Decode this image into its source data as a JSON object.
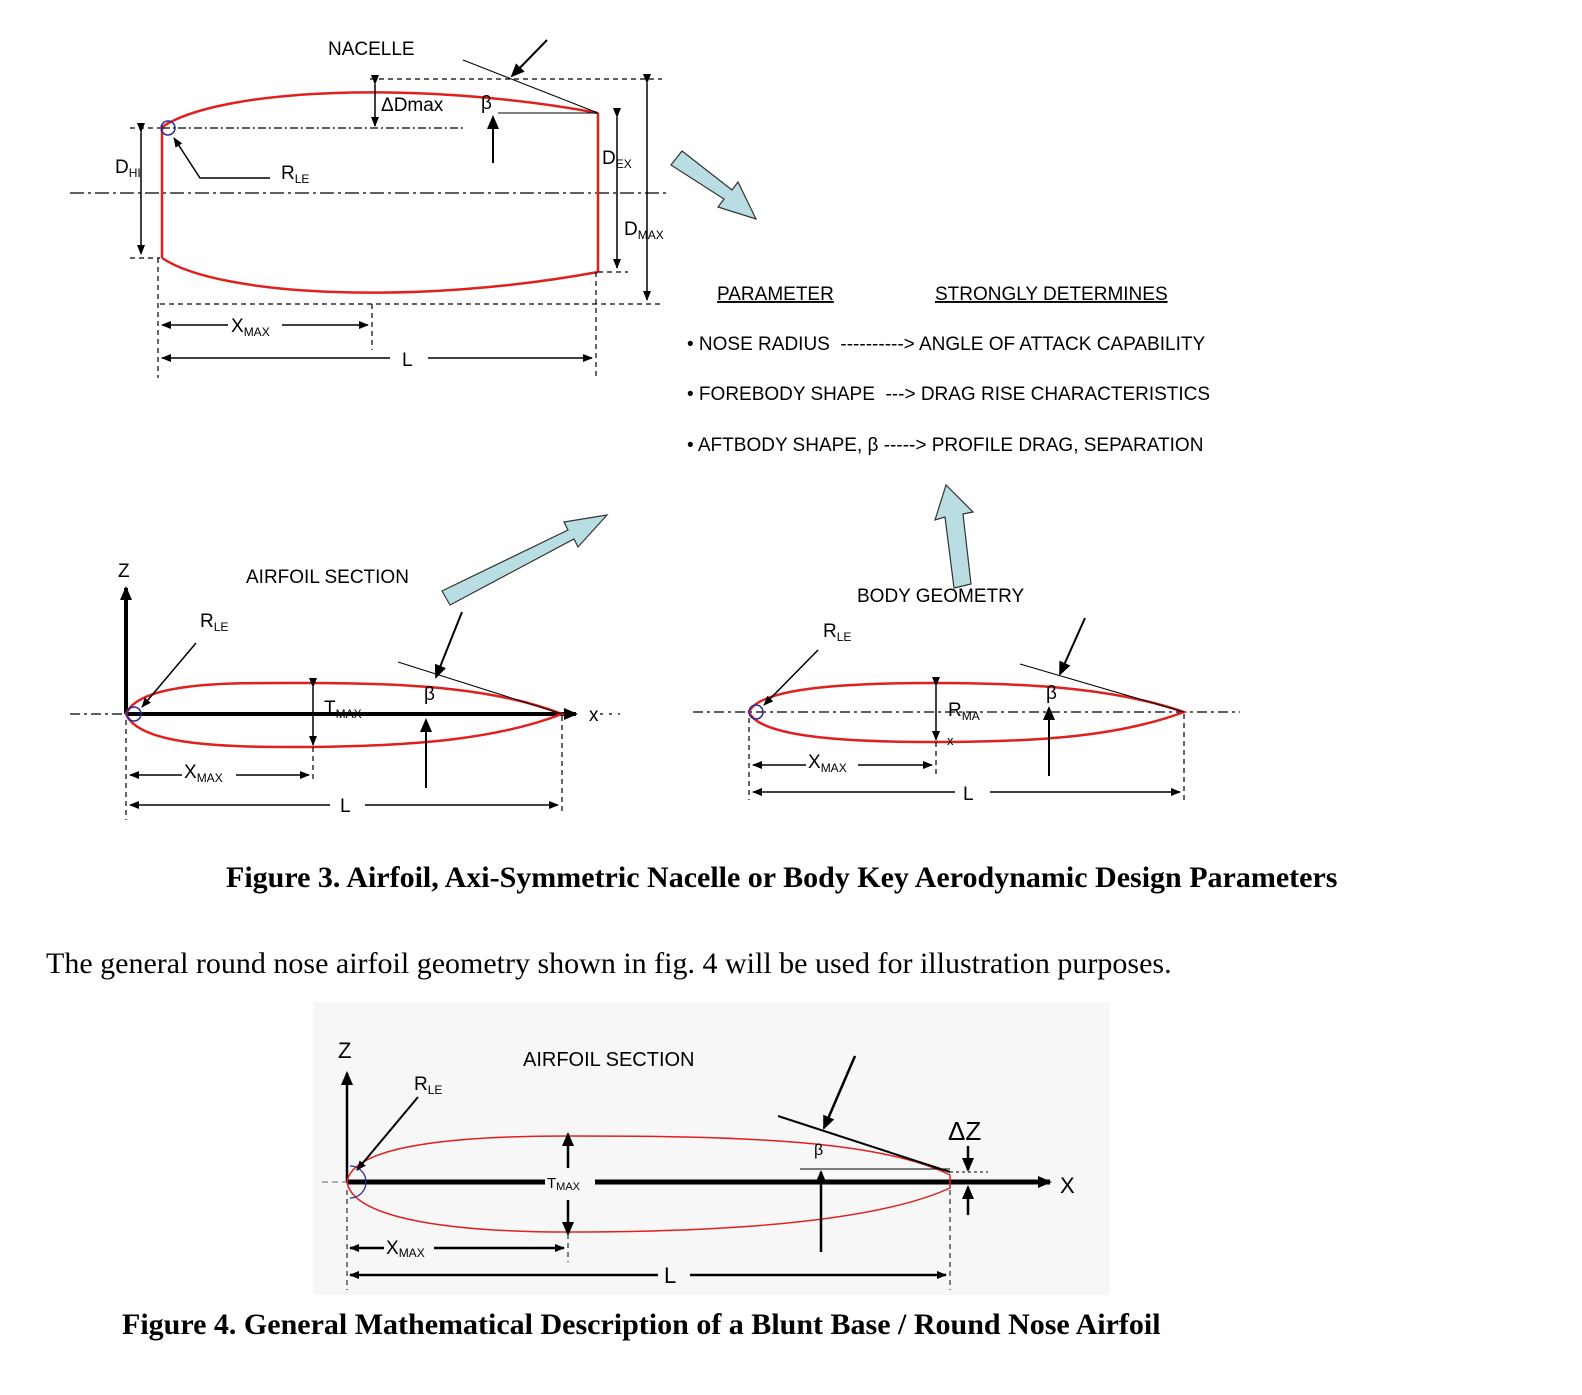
{
  "figure3": {
    "nacelle": {
      "title": "NACELLE",
      "delta_dmax": "ΔDmax",
      "beta": "β",
      "d_hi": "D",
      "d_hi_sub": "HI",
      "r_le": "R",
      "r_le_sub": "LE",
      "d_ex": "D",
      "d_ex_sub": "EX",
      "d_max": "D",
      "d_max_sub": "MAX",
      "x_max": "X",
      "x_max_sub": "MAX",
      "length": "L"
    },
    "table": {
      "header_param": "PARAMETER",
      "header_det": "STRONGLY DETERMINES",
      "rows": [
        "• NOSE RADIUS  ----------> ANGLE OF ATTACK CAPABILITY",
        "• FOREBODY SHAPE  ---> DRAG RISE CHARACTERISTICS",
        "• AFTBODY SHAPE, β -----> PROFILE DRAG, SEPARATION"
      ]
    },
    "airfoil": {
      "title": "AIRFOIL SECTION",
      "z_axis": "Z",
      "x_axis": "x",
      "r_le": "R",
      "r_le_sub": "LE",
      "t_max": "T",
      "t_max_sub": "MAX",
      "beta": "β",
      "x_max": "X",
      "x_max_sub": "MAX",
      "length": "L"
    },
    "body": {
      "title": "BODY GEOMETRY",
      "r_le": "R",
      "r_le_sub": "LE",
      "r_max": "R",
      "r_max_sub": "MA",
      "r_max_x": "x",
      "beta": "β",
      "x_max": "X",
      "x_max_sub": "MAX",
      "length": "L"
    },
    "caption": "Figure 3. Airfoil, Axi-Symmetric Nacelle or Body Key Aerodynamic Design Parameters"
  },
  "body_text": "The general round nose airfoil geometry shown in fig. 4 will be used for illustration purposes.",
  "figure4": {
    "title": "AIRFOIL SECTION",
    "z_axis": "Z",
    "x_axis": "X",
    "r_le": "R",
    "r_le_sub": "LE",
    "t_max": "T",
    "t_max_sub": "MAX",
    "beta": "β",
    "delta_z": "ΔZ",
    "x_max": "X",
    "x_max_sub": "MAX",
    "length": "L",
    "caption": "Figure 4. General Mathematical Description of a Blunt Base / Round Nose Airfoil"
  },
  "colors": {
    "profile": "#e0201e",
    "arrow_fill": "#b8dde2",
    "nose_circle": "#2a2a9a"
  }
}
